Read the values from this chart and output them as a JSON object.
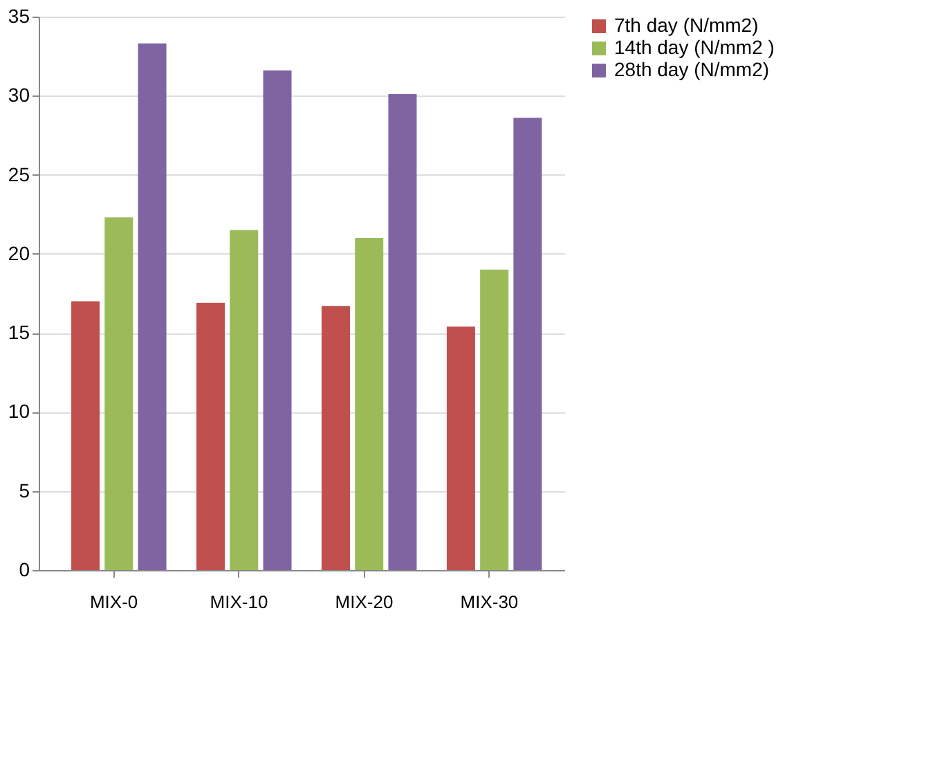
{
  "chart_data": {
    "type": "bar",
    "categories": [
      "MIX-0",
      "MIX-10",
      "MIX-20",
      "MIX-30"
    ],
    "series": [
      {
        "name": "7th day (N/mm2)",
        "color": "#c0504d",
        "values": [
          17,
          16.9,
          16.7,
          15.4
        ]
      },
      {
        "name": "14th day (N/mm2 )",
        "color": "#9bbb59",
        "values": [
          22.3,
          21.5,
          21,
          19
        ]
      },
      {
        "name": "28th day (N/mm2)",
        "color": "#8064a2",
        "values": [
          33.3,
          31.6,
          30.1,
          28.6
        ]
      }
    ],
    "ylim": [
      0,
      35
    ],
    "yticks": [
      0,
      5,
      10,
      15,
      20,
      25,
      30,
      35
    ],
    "grid": "y",
    "legend": "right"
  }
}
